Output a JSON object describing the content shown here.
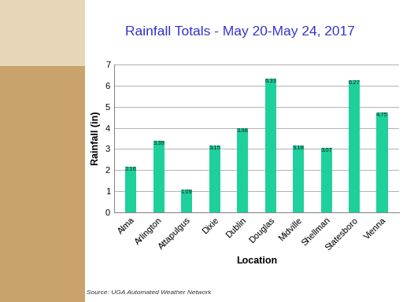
{
  "chart_data": {
    "type": "bar",
    "title": "Rainfall Totals - May 20-May 24, 2017",
    "x_label": "Location",
    "y_label": "Rainfall (in)",
    "categories": [
      "Alma",
      "Arlington",
      "Attapulgus",
      "Dixie",
      "Dublin",
      "Douglas",
      "Midville",
      "Shellman",
      "Statesboro",
      "Vienna"
    ],
    "values": [
      2.16,
      3.39,
      1.09,
      3.15,
      3.98,
      6.33,
      3.18,
      3.07,
      6.27,
      4.75
    ],
    "color": "#1ed19c",
    "ylim": [
      0,
      7
    ],
    "yticks": [
      0,
      1,
      2,
      3,
      4,
      5,
      6,
      7
    ],
    "grid": true,
    "data_labels": true,
    "source": "Source: UGA Automated Weather Network"
  }
}
